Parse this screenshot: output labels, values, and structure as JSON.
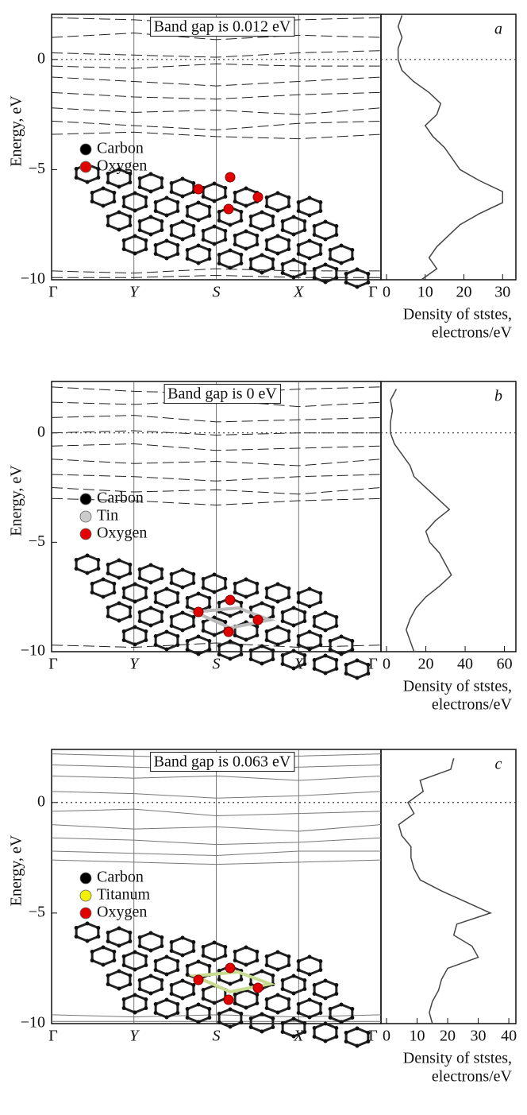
{
  "chart_data": [
    {
      "type": "bands",
      "label": "a",
      "annotation": "Band gap is 0.012 eV",
      "ylabel": "Energy, eV",
      "ylim": [
        -10,
        2.05
      ],
      "yticks": [
        {
          "value": -10,
          "label": "−10"
        },
        {
          "value": -5,
          "label": "−5"
        },
        0
      ],
      "categories": [
        "Γ",
        "Y",
        "S",
        "X",
        "Γ"
      ],
      "reference_line": 0,
      "line_style": "dashed",
      "line_color": "#222",
      "series": [
        {
          "values": [
            1.9,
            1.8,
            1.6,
            1.8,
            1.9
          ]
        },
        {
          "values": [
            1.0,
            1.2,
            0.9,
            1.1,
            1.0
          ]
        },
        {
          "values": [
            0.3,
            0.2,
            0.1,
            0.3,
            0.4
          ]
        },
        {
          "values": [
            -0.3,
            -0.4,
            -0.2,
            -0.3,
            -0.3
          ]
        },
        {
          "values": [
            -0.8,
            -1.0,
            -1.2,
            -1.0,
            -0.8
          ]
        },
        {
          "values": [
            -1.5,
            -1.7,
            -1.8,
            -1.6,
            -1.5
          ]
        },
        {
          "values": [
            -2.2,
            -2.4,
            -2.3,
            -2.5,
            -2.2
          ]
        },
        {
          "values": [
            -2.8,
            -3.0,
            -3.2,
            -2.9,
            -2.8
          ]
        },
        {
          "values": [
            -3.4,
            -3.3,
            -3.5,
            -3.6,
            -3.4
          ]
        },
        {
          "values": [
            -9.6,
            -9.7,
            -9.5,
            -9.6,
            -9.6
          ]
        },
        {
          "values": [
            -9.9,
            -9.9,
            -9.8,
            -9.9,
            -9.9
          ]
        }
      ],
      "structure_legend": [
        {
          "label": "Carbon",
          "color": "#000000"
        },
        {
          "label": "Oxygen",
          "color": "#e00000"
        }
      ],
      "dos": {
        "xlabel": [
          "Density of ststes,",
          "electrons/eV"
        ],
        "xlim": [
          0,
          32
        ],
        "xticks": [
          0,
          10,
          20,
          30
        ],
        "color": "#444",
        "energy": [
          2,
          1.5,
          1,
          0.5,
          0,
          -0.5,
          -1,
          -1.5,
          -2,
          -2.5,
          -3,
          -3.5,
          -4,
          -4.5,
          -5,
          -5.5,
          -6,
          -6.5,
          -7,
          -7.5,
          -8,
          -8.5,
          -9,
          -9.5,
          -10
        ],
        "values": [
          4,
          3,
          4,
          3,
          3,
          4,
          7,
          11,
          14,
          13,
          10,
          12,
          15,
          17,
          19,
          24,
          30,
          30,
          24,
          19,
          16,
          13,
          11,
          13,
          9
        ]
      }
    },
    {
      "type": "bands",
      "label": "b",
      "annotation": "Band gap is 0 eV",
      "ylabel": "Energy, eV",
      "ylim": [
        -10,
        2.35
      ],
      "yticks": [
        {
          "value": -10,
          "label": "−10"
        },
        {
          "value": -5,
          "label": "−5"
        },
        0
      ],
      "categories": [
        "Γ",
        "Y",
        "S",
        "X",
        "Γ"
      ],
      "reference_line": 0,
      "line_style": "dashed",
      "line_color": "#222",
      "series": [
        {
          "values": [
            2.1,
            1.9,
            1.8,
            2.0,
            2.1
          ]
        },
        {
          "values": [
            1.4,
            1.3,
            1.5,
            1.2,
            1.4
          ]
        },
        {
          "values": [
            0.7,
            0.8,
            0.5,
            0.6,
            0.7
          ]
        },
        {
          "values": [
            0.0,
            0.1,
            -0.1,
            0.0,
            0.0
          ]
        },
        {
          "values": [
            -0.6,
            -0.5,
            -0.8,
            -0.7,
            -0.6
          ]
        },
        {
          "values": [
            -1.2,
            -1.4,
            -1.3,
            -1.5,
            -1.2
          ]
        },
        {
          "values": [
            -1.9,
            -2.0,
            -2.2,
            -2.0,
            -1.9
          ]
        },
        {
          "values": [
            -2.5,
            -2.7,
            -2.6,
            -2.8,
            -2.5
          ]
        },
        {
          "values": [
            -3.0,
            -3.1,
            -3.3,
            -3.1,
            -3.0
          ]
        },
        {
          "values": [
            -9.7,
            -9.8,
            -9.6,
            -9.8,
            -9.7
          ]
        }
      ],
      "structure_legend": [
        {
          "label": "Carbon",
          "color": "#000000"
        },
        {
          "label": "Tin",
          "color": "#cccccc"
        },
        {
          "label": "Oxygen",
          "color": "#e00000"
        }
      ],
      "dos": {
        "xlabel": [
          "Density of ststes,",
          "electrons/eV"
        ],
        "xlim": [
          0,
          63
        ],
        "xticks": [
          0,
          20,
          40,
          60
        ],
        "color": "#444",
        "energy": [
          2,
          1.5,
          1,
          0.5,
          0,
          -0.5,
          -1,
          -1.5,
          -2,
          -2.5,
          -3,
          -3.5,
          -4,
          -4.5,
          -5,
          -5.5,
          -6,
          -6.5,
          -7,
          -7.5,
          -8,
          -8.5,
          -9,
          -9.5,
          -10
        ],
        "values": [
          5,
          2,
          3,
          2,
          2,
          4,
          8,
          12,
          14,
          20,
          26,
          32,
          25,
          20,
          22,
          27,
          30,
          33,
          27,
          20,
          15,
          12,
          10,
          12,
          14
        ]
      }
    },
    {
      "type": "bands",
      "label": "c",
      "annotation": "Band gap is 0.063 eV",
      "ylabel": "Energy, eV",
      "ylim": [
        -10,
        2.4
      ],
      "yticks": [
        {
          "value": -10,
          "label": "−10"
        },
        {
          "value": -5,
          "label": "−5"
        },
        0
      ],
      "categories": [
        "Γ",
        "Y",
        "S",
        "X",
        "Γ"
      ],
      "reference_line": 0,
      "line_style": "solid",
      "line_color": "#777",
      "series": [
        {
          "values": [
            2.2,
            2.1,
            2.0,
            2.1,
            2.2
          ]
        },
        {
          "values": [
            1.7,
            1.6,
            1.5,
            1.6,
            1.7
          ]
        },
        {
          "values": [
            1.2,
            1.1,
            1.2,
            1.0,
            1.2
          ]
        },
        {
          "values": [
            0.5,
            0.4,
            0.2,
            0.3,
            0.5
          ]
        },
        {
          "values": [
            -0.4,
            -0.3,
            -0.6,
            -0.5,
            -0.4
          ]
        },
        {
          "values": [
            -1.0,
            -1.2,
            -1.1,
            -1.3,
            -1.0
          ]
        },
        {
          "values": [
            -1.6,
            -1.7,
            -1.9,
            -1.8,
            -1.6
          ]
        },
        {
          "values": [
            -2.2,
            -2.3,
            -2.4,
            -2.2,
            -2.2
          ]
        },
        {
          "values": [
            -2.6,
            -2.7,
            -2.8,
            -2.7,
            -2.6
          ]
        },
        {
          "values": [
            -9.6,
            -9.7,
            -9.6,
            -9.7,
            -9.6
          ]
        },
        {
          "values": [
            -9.9,
            -9.9,
            -9.9,
            -9.9,
            -9.9
          ]
        }
      ],
      "structure_legend": [
        {
          "label": "Carbon",
          "color": "#000000"
        },
        {
          "label": "Titanum",
          "color": "#f0f000"
        },
        {
          "label": "Oxygen",
          "color": "#e00000"
        }
      ],
      "dos": {
        "xlabel": [
          "Density of ststes,",
          "electrons/eV"
        ],
        "xlim": [
          0,
          40.5
        ],
        "xticks": [
          0,
          10,
          20,
          30,
          40
        ],
        "color": "#444",
        "energy": [
          2,
          1.5,
          1,
          0.5,
          0,
          -0.5,
          -1,
          -1.5,
          -2,
          -2.5,
          -3,
          -3.5,
          -4,
          -4.5,
          -5,
          -5.5,
          -6,
          -6.5,
          -7,
          -7.5,
          -8,
          -8.5,
          -9,
          -9.5,
          -10
        ],
        "values": [
          22,
          21,
          11,
          12,
          7,
          9,
          4,
          5,
          8,
          8,
          9,
          11,
          18,
          26,
          34,
          23,
          22,
          28,
          30,
          20,
          18,
          17,
          15,
          14,
          15
        ]
      }
    }
  ]
}
